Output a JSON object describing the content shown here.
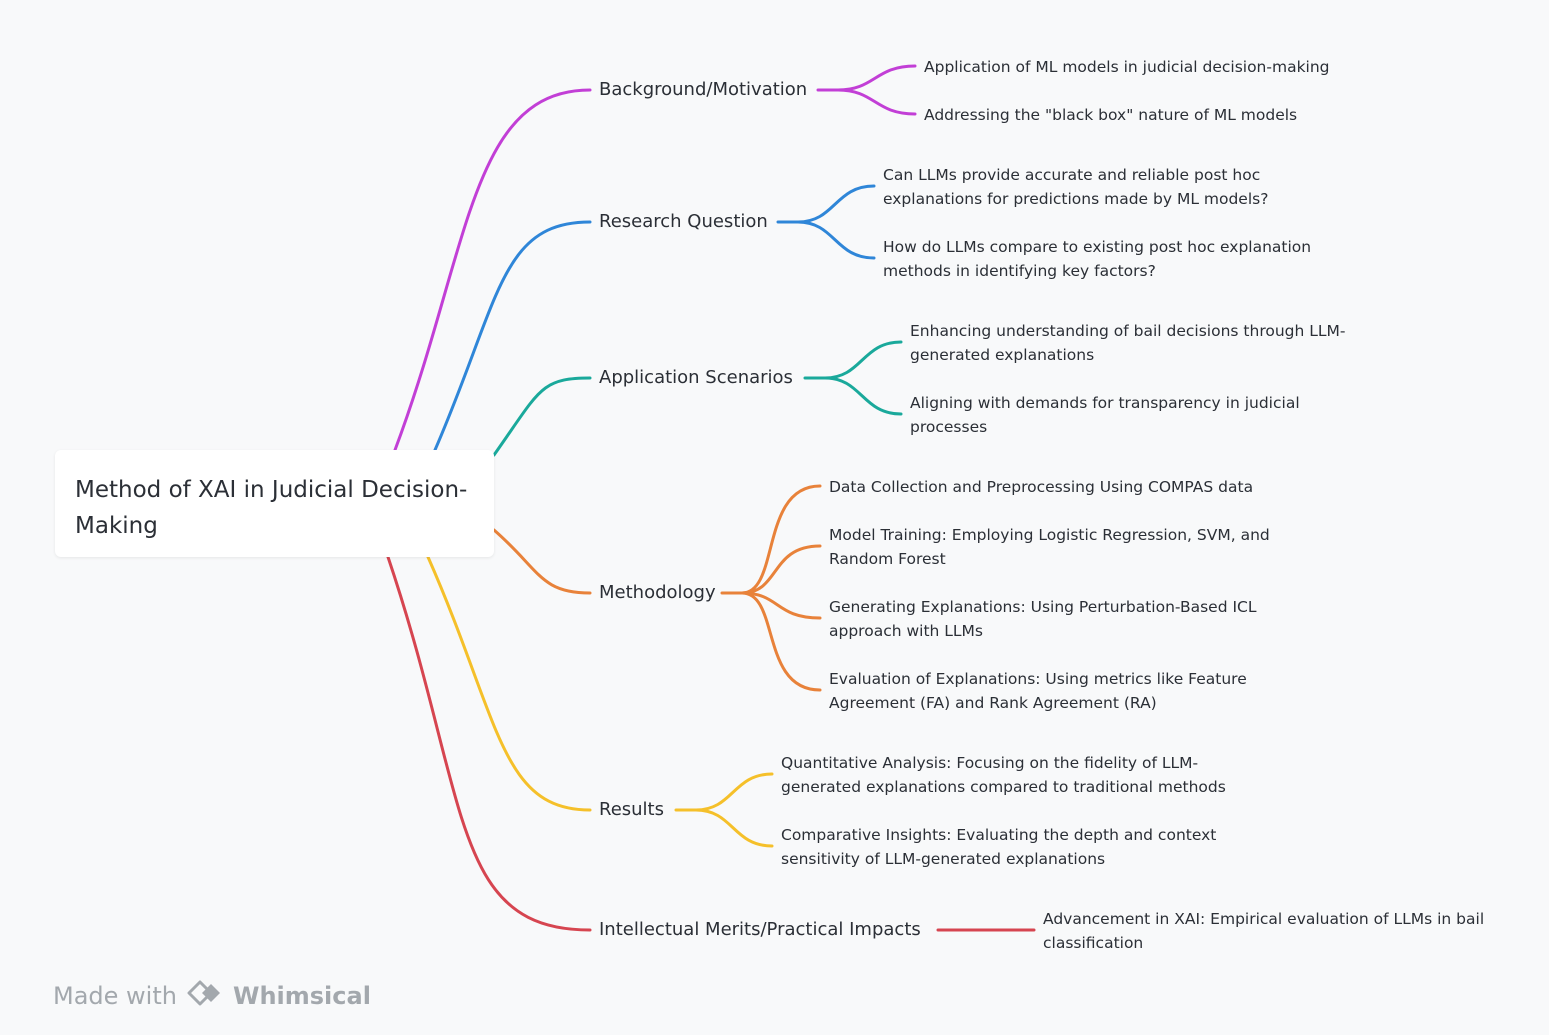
{
  "root": {
    "label": "Method of XAI in Judicial Decision-\nMaking"
  },
  "colors": {
    "background": "#f8f9fa",
    "purple": "#c23fd6",
    "blue": "#2f86d8",
    "teal": "#1aa99b",
    "orange": "#e8823a",
    "yellow": "#f5c02a",
    "red": "#d64550"
  },
  "branches": [
    {
      "label": "Background/Motivation",
      "color": "purple",
      "leaves": [
        "Application of ML models in judicial decision-making",
        "Addressing the \"black box\" nature of ML models"
      ]
    },
    {
      "label": "Research Question",
      "color": "blue",
      "leaves": [
        "Can LLMs provide accurate and reliable post hoc\nexplanations for predictions made by ML models?",
        "How do LLMs compare to existing post hoc explanation\nmethods in identifying key factors?"
      ]
    },
    {
      "label": "Application Scenarios",
      "color": "teal",
      "leaves": [
        "Enhancing understanding of bail decisions through LLM-\ngenerated explanations",
        "Aligning with demands for transparency in judicial\nprocesses"
      ]
    },
    {
      "label": "Methodology",
      "color": "orange",
      "leaves": [
        "Data Collection and Preprocessing Using COMPAS data",
        "Model Training: Employing Logistic Regression, SVM, and\nRandom Forest",
        "Generating Explanations: Using Perturbation-Based ICL\napproach with LLMs",
        "Evaluation of Explanations: Using metrics like Feature\nAgreement (FA) and Rank Agreement (RA)"
      ]
    },
    {
      "label": "Results",
      "color": "yellow",
      "leaves": [
        "Quantitative Analysis: Focusing on the fidelity of LLM-\ngenerated explanations compared to traditional methods",
        "Comparative Insights: Evaluating the depth and context\nsensitivity of LLM-generated explanations"
      ]
    },
    {
      "label": "Intellectual Merits/Practical Impacts",
      "color": "red",
      "leaves": [
        "Advancement in XAI: Empirical evaluation of LLMs in bail\nclassification"
      ]
    }
  ],
  "footer": {
    "prefix": "Made with",
    "brand": "Whimsical",
    "logo_icon": "whimsical-logo-icon"
  }
}
